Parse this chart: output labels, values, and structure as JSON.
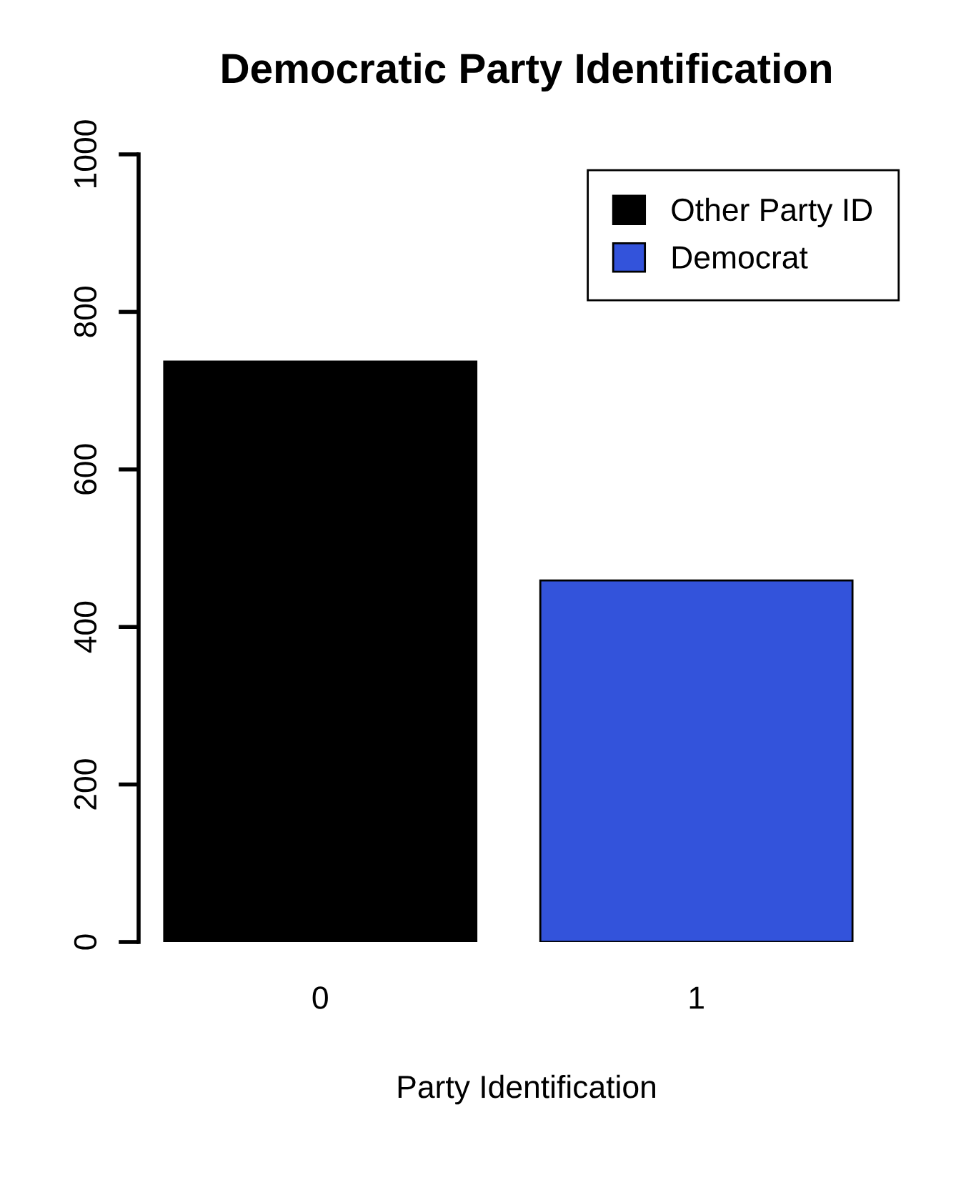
{
  "chart_data": {
    "type": "bar",
    "title": "Democratic Party Identification",
    "xlabel": "Party Identification",
    "categories": [
      "0",
      "1"
    ],
    "series": [
      {
        "name": "Other Party ID",
        "color": "#000000",
        "values": [
          737,
          null
        ]
      },
      {
        "name": "Democrat",
        "color": "#3353db",
        "values": [
          null,
          459
        ]
      }
    ],
    "ylim": [
      0,
      1000
    ],
    "yticks": [
      0,
      200,
      400,
      600,
      800,
      1000
    ],
    "grid": false,
    "legend": "top right"
  }
}
